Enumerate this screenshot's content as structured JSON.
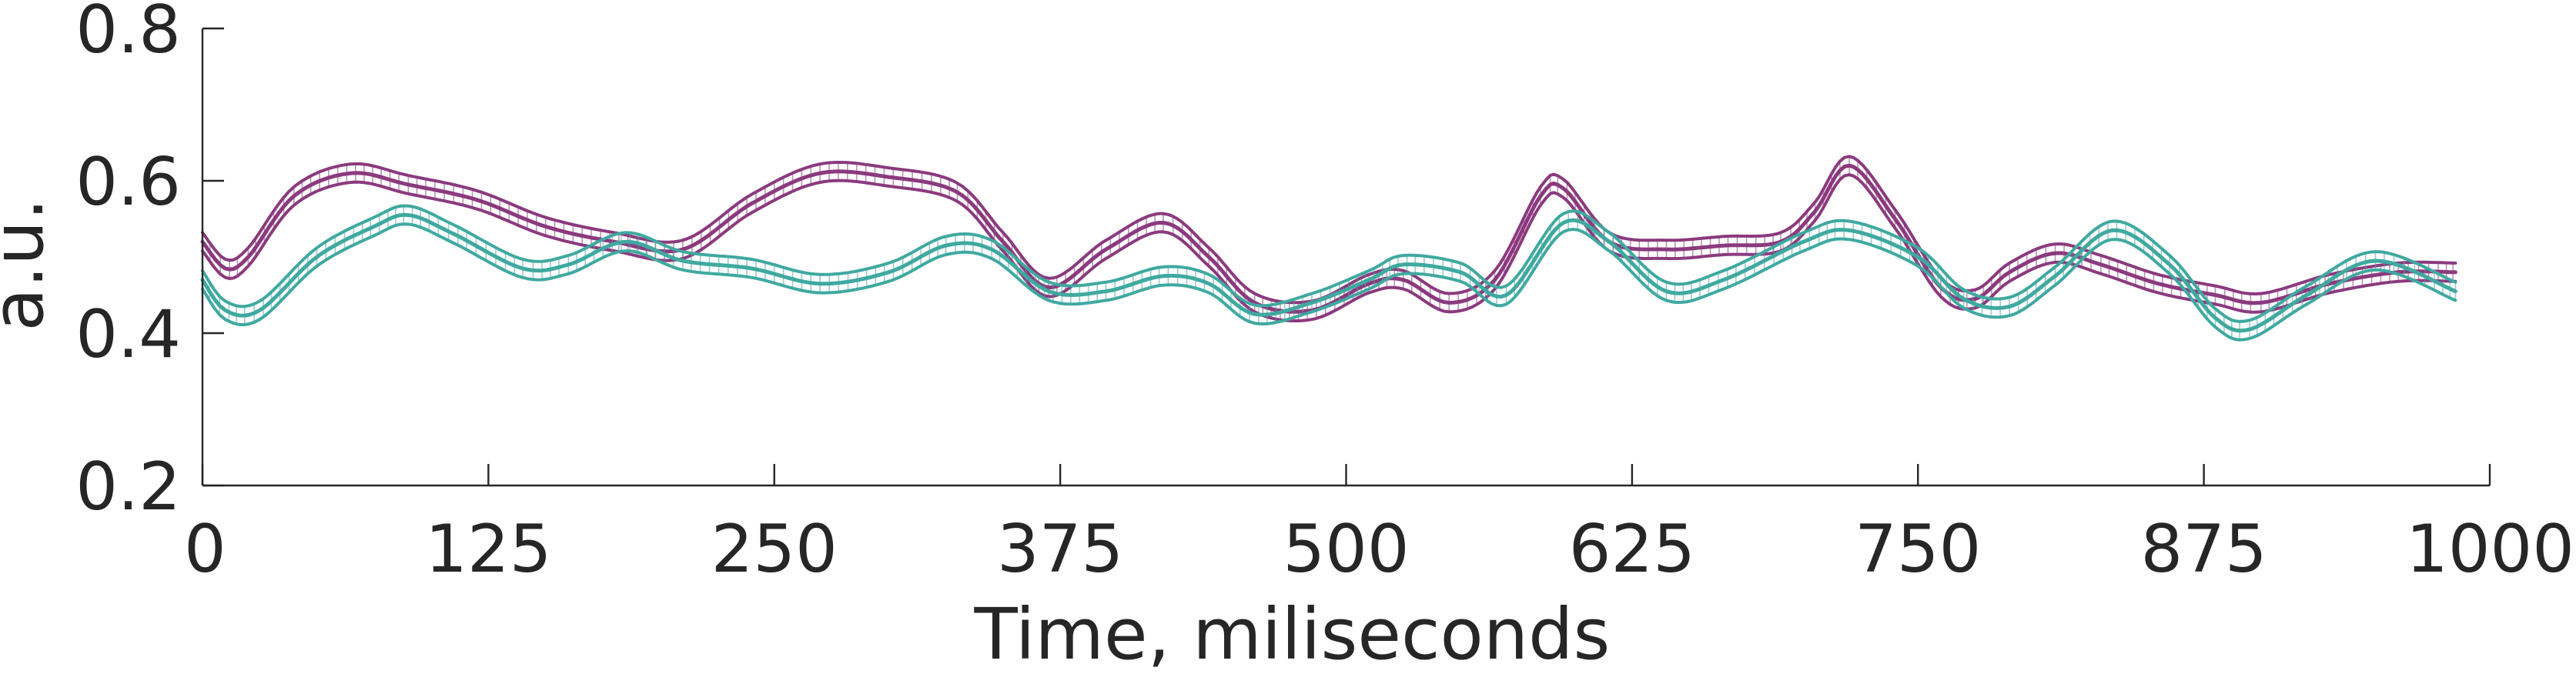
{
  "chart_data": {
    "type": "line",
    "title": "",
    "xlabel": "Time, miliseconds",
    "ylabel": "a.u.",
    "xlim": [
      0,
      1000
    ],
    "ylim": [
      0.2,
      0.8
    ],
    "xticks": [
      0,
      125,
      250,
      375,
      500,
      625,
      750,
      875,
      1000
    ],
    "yticks": [
      0.2,
      0.4,
      0.6,
      0.8
    ],
    "xtick_labels": [
      "0",
      "125",
      "250",
      "375",
      "500",
      "625",
      "750",
      "875",
      "1000"
    ],
    "ytick_labels": [
      "0.2",
      "0.4",
      "0.6",
      "0.8"
    ],
    "grid": false,
    "error_bars": true,
    "error_halfwidth": 0.012,
    "series": [
      {
        "color": "#8b3a7e",
        "x": [
          0,
          10,
          20,
          40,
          65,
          90,
          120,
          150,
          180,
          210,
          240,
          270,
          300,
          330,
          350,
          370,
          395,
          420,
          440,
          460,
          485,
          510,
          525,
          545,
          565,
          585,
          595,
          615,
          640,
          665,
          690,
          705,
          720,
          740,
          760,
          775,
          790,
          810,
          830,
          855,
          880,
          900,
          930,
          960,
          985
        ],
        "y": [
          0.52,
          0.485,
          0.5,
          0.58,
          0.61,
          0.595,
          0.575,
          0.54,
          0.52,
          0.51,
          0.57,
          0.61,
          0.605,
          0.585,
          0.52,
          0.46,
          0.51,
          0.545,
          0.5,
          0.44,
          0.43,
          0.465,
          0.47,
          0.44,
          0.47,
          0.58,
          0.59,
          0.52,
          0.51,
          0.515,
          0.52,
          0.56,
          0.62,
          0.55,
          0.46,
          0.445,
          0.48,
          0.505,
          0.49,
          0.465,
          0.45,
          0.44,
          0.465,
          0.48,
          0.48
        ]
      },
      {
        "color": "#3fa9a0",
        "x": [
          0,
          10,
          25,
          50,
          75,
          90,
          110,
          140,
          160,
          185,
          210,
          240,
          270,
          300,
          325,
          345,
          370,
          395,
          420,
          440,
          460,
          485,
          510,
          525,
          550,
          570,
          595,
          615,
          640,
          665,
          700,
          720,
          750,
          770,
          790,
          810,
          835,
          860,
          880,
          895,
          920,
          950,
          985
        ],
        "y": [
          0.47,
          0.43,
          0.43,
          0.5,
          0.54,
          0.555,
          0.53,
          0.485,
          0.49,
          0.52,
          0.495,
          0.485,
          0.465,
          0.48,
          0.515,
          0.51,
          0.455,
          0.455,
          0.475,
          0.465,
          0.425,
          0.44,
          0.47,
          0.49,
          0.48,
          0.45,
          0.545,
          0.52,
          0.455,
          0.47,
          0.52,
          0.535,
          0.5,
          0.445,
          0.435,
          0.475,
          0.535,
          0.49,
          0.42,
          0.405,
          0.45,
          0.495,
          0.455
        ]
      }
    ]
  }
}
